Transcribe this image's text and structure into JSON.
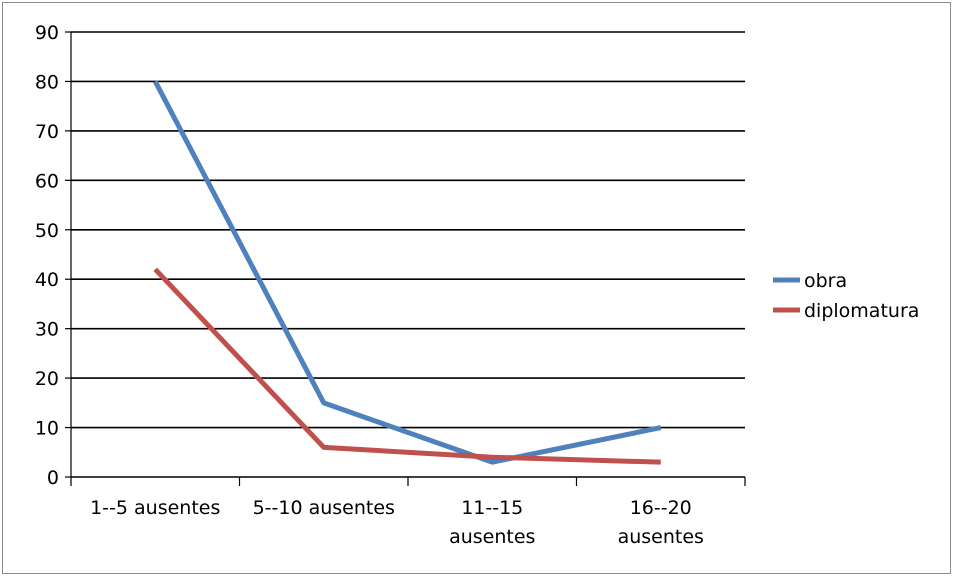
{
  "chart_data": {
    "type": "line",
    "title": "",
    "xlabel": "",
    "ylabel": "",
    "categories": [
      [
        "1--5 ausentes"
      ],
      [
        "5--10 ausentes"
      ],
      [
        "11--15",
        "ausentes"
      ],
      [
        "16--20",
        "ausentes"
      ]
    ],
    "ylim": [
      0,
      90
    ],
    "yticks": [
      0,
      10,
      20,
      30,
      40,
      50,
      60,
      70,
      80,
      90
    ],
    "grid": true,
    "legend_position": "right",
    "series": [
      {
        "name": "obra",
        "color": "#4f81bd",
        "values": [
          80,
          15,
          3,
          10
        ]
      },
      {
        "name": "diplomatura",
        "color": "#c0504d",
        "values": [
          42,
          6,
          4,
          3
        ]
      }
    ]
  }
}
